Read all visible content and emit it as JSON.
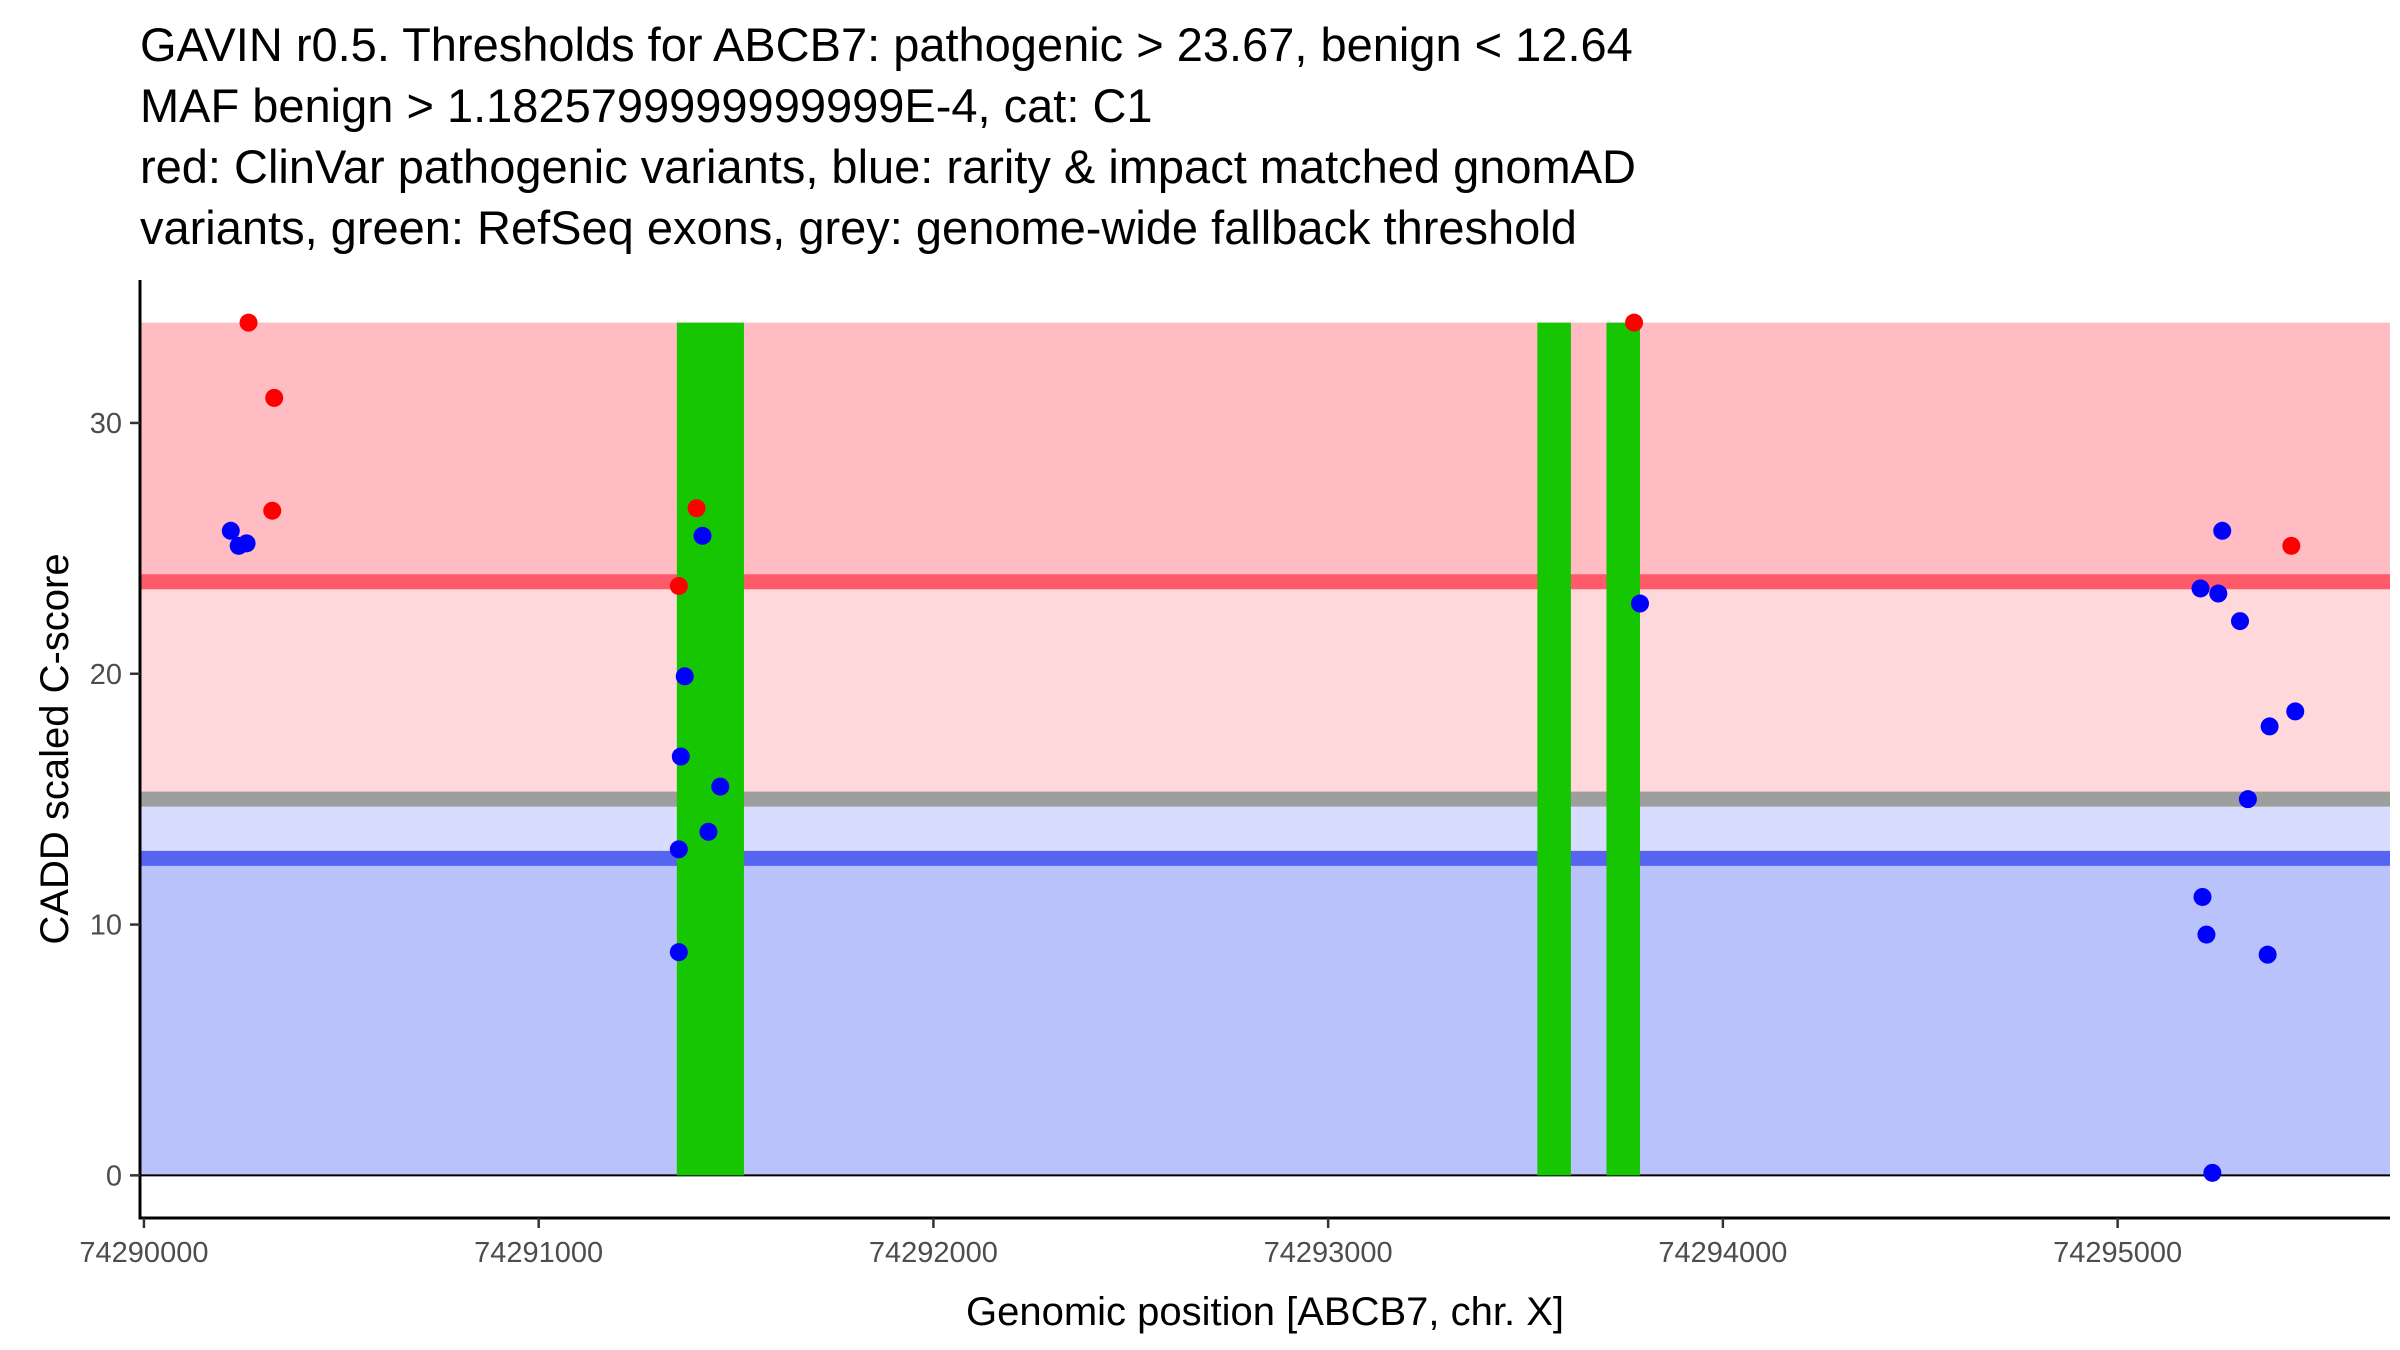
{
  "chart_data": {
    "type": "scatter",
    "title_lines": [
      "GAVIN r0.5. Thresholds for ABCB7: pathogenic > 23.67, benign < 12.64",
      "MAF benign > 1.1825799999999999E-4, cat: C1",
      "red: ClinVar pathogenic variants, blue: rarity & impact matched gnomAD",
      "variants, green: RefSeq exons, grey: genome-wide fallback threshold"
    ],
    "xlabel": "Genomic position [ABCB7, chr. X]",
    "ylabel": "CADD scaled C-score",
    "xlim": [
      74289990,
      74295690
    ],
    "ylim": [
      -1.7,
      35.7
    ],
    "x_ticks": [
      74290000,
      74291000,
      74292000,
      74293000,
      74294000,
      74295000
    ],
    "x_tick_labels": [
      "74290000",
      "74291000",
      "74292000",
      "74293000",
      "74294000",
      "74295000"
    ],
    "y_ticks": [
      0,
      10,
      20,
      30
    ],
    "y_tick_labels": [
      "0",
      "10",
      "20",
      "30"
    ],
    "thresholds": {
      "pathogenic": 23.67,
      "benign": 12.64,
      "fallback": 15
    },
    "bands": [
      {
        "name": "pathogenic-zone",
        "y0": 23.67,
        "y1": 34,
        "color": "#ffbcc2"
      },
      {
        "name": "upper-mid-zone",
        "y0": 15,
        "y1": 23.67,
        "color": "#ffd8dc"
      },
      {
        "name": "lower-mid-zone",
        "y0": 12.64,
        "y1": 15,
        "color": "#d8dcff"
      },
      {
        "name": "benign-zone",
        "y0": 0,
        "y1": 12.64,
        "color": "#bac2fb"
      }
    ],
    "threshold_lines": [
      {
        "name": "pathogenic-threshold-line",
        "y": 23.67,
        "color": "#ff5a6a"
      },
      {
        "name": "fallback-threshold-line",
        "y": 15,
        "color": "#9e9e9e"
      },
      {
        "name": "benign-threshold-line",
        "y": 12.64,
        "color": "#5565f2"
      }
    ],
    "exons": [
      {
        "start": 74291350,
        "end": 74291520
      },
      {
        "start": 74293530,
        "end": 74293615
      },
      {
        "start": 74293705,
        "end": 74293790
      }
    ],
    "exon_color": "#16c600",
    "series": [
      {
        "name": "ClinVar pathogenic variants",
        "color": "#ff0000",
        "x": [
          74290265,
          74290330,
          74290325,
          74291400,
          74291355,
          74293775,
          74295440
        ],
        "y": [
          34.0,
          31.0,
          26.5,
          26.6,
          23.5,
          34.0,
          25.1
        ]
      },
      {
        "name": "gnomAD matched variants",
        "color": "#0000ff",
        "x": [
          74290220,
          74290240,
          74290260,
          74291415,
          74291370,
          74291360,
          74291460,
          74291430,
          74291355,
          74291355,
          74293790,
          74295210,
          74295265,
          74295255,
          74295310,
          74295385,
          74295450,
          74295330,
          74295215,
          74295225,
          74295380,
          74295240
        ],
        "y": [
          25.7,
          25.1,
          25.2,
          25.5,
          19.9,
          16.7,
          15.5,
          13.7,
          13.0,
          8.9,
          22.8,
          23.4,
          25.7,
          23.2,
          22.1,
          17.9,
          18.5,
          15.0,
          11.1,
          9.6,
          8.8,
          0.1
        ]
      }
    ]
  }
}
